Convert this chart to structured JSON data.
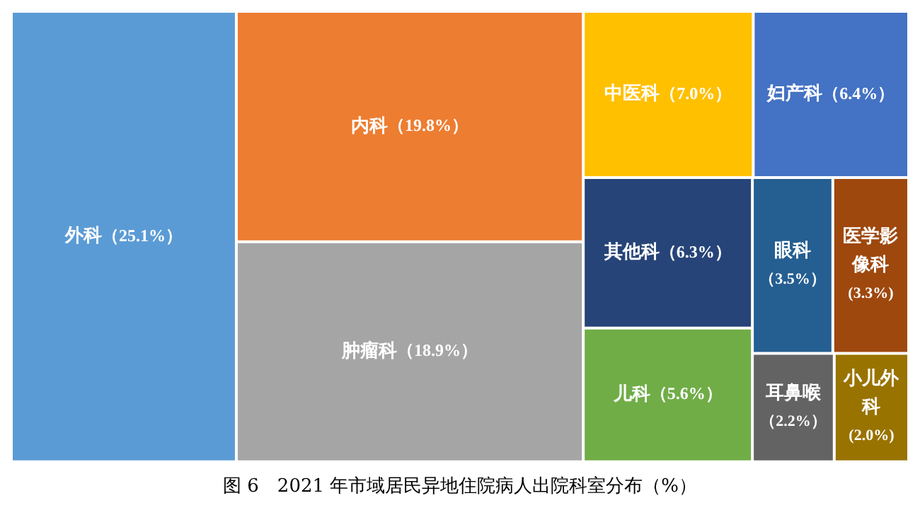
{
  "chart_data": {
    "type": "other",
    "title": "图 6　2021 年市域居民异地住院病人出院科室分布（%）",
    "categories": [
      "外科",
      "内科",
      "肿瘤科",
      "中医科",
      "妇产科",
      "其他科",
      "儿科",
      "眼科",
      "医学影像科",
      "耳鼻喉",
      "小儿外科"
    ],
    "values": [
      25.1,
      19.8,
      18.9,
      7.0,
      6.4,
      6.3,
      5.6,
      3.5,
      3.3,
      2.2,
      2.0
    ],
    "value_labels": [
      "（25.1%）",
      "（19.8%）",
      "（18.9%）",
      "（7.0%）",
      "（6.4%）",
      "（6.3%）",
      "（5.6%）",
      "（3.5%）",
      "(3.3%)",
      "（2.2%）",
      "(2.0%)"
    ],
    "colors": [
      "#5b9bd5",
      "#ed7d31",
      "#a5a5a5",
      "#ffc000",
      "#4472c4",
      "#264478",
      "#70ad47",
      "#255e91",
      "#9e480e",
      "#636363",
      "#997300"
    ]
  }
}
